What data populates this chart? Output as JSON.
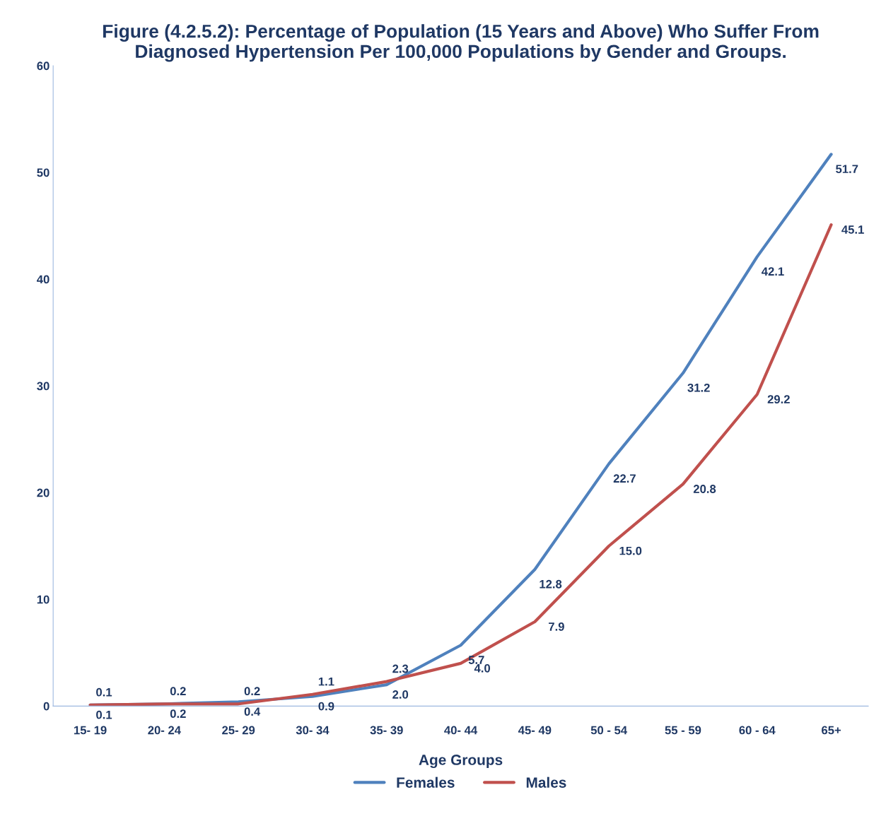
{
  "chart_data": {
    "type": "line",
    "title": "Figure (4.2.5.2): Percentage of Population (15 Years and Above) Who Suffer From\nDiagnosed Hypertension Per 100,000 Populations by Gender and Groups.",
    "xlabel": "Age Groups",
    "categories": [
      "15- 19",
      "20- 24",
      "25- 29",
      "30- 34",
      "35- 39",
      "40- 44",
      "45- 49",
      "50 - 54",
      "55 - 59",
      "60 - 64",
      "65+"
    ],
    "series": [
      {
        "name": "Females",
        "color": "#4f81bd",
        "values": [
          0.1,
          0.2,
          0.4,
          0.9,
          2.0,
          5.7,
          12.8,
          22.7,
          31.2,
          42.1,
          51.7
        ],
        "value_labels": [
          "0.1",
          "0.2",
          "0.4",
          "0.9",
          "2.0",
          "5.7",
          "12.8",
          "22.7",
          "31.2",
          "42.1",
          "51.7"
        ]
      },
      {
        "name": "Males",
        "color": "#c0504d",
        "values": [
          0.1,
          0.2,
          0.2,
          1.1,
          2.3,
          4.0,
          7.9,
          15.0,
          20.8,
          29.2,
          45.1
        ],
        "value_labels": [
          "0.1",
          "0.2",
          "0.2",
          "1.1",
          "2.3",
          "4.0",
          "7.9",
          "15.0",
          "20.8",
          "29.2",
          "45.1"
        ]
      }
    ],
    "ylim": [
      0,
      60
    ],
    "yticks": [
      0,
      10,
      20,
      30,
      40,
      50,
      60
    ],
    "grid": false,
    "legend": "bottom",
    "marker": "none",
    "line_style": "solid"
  }
}
